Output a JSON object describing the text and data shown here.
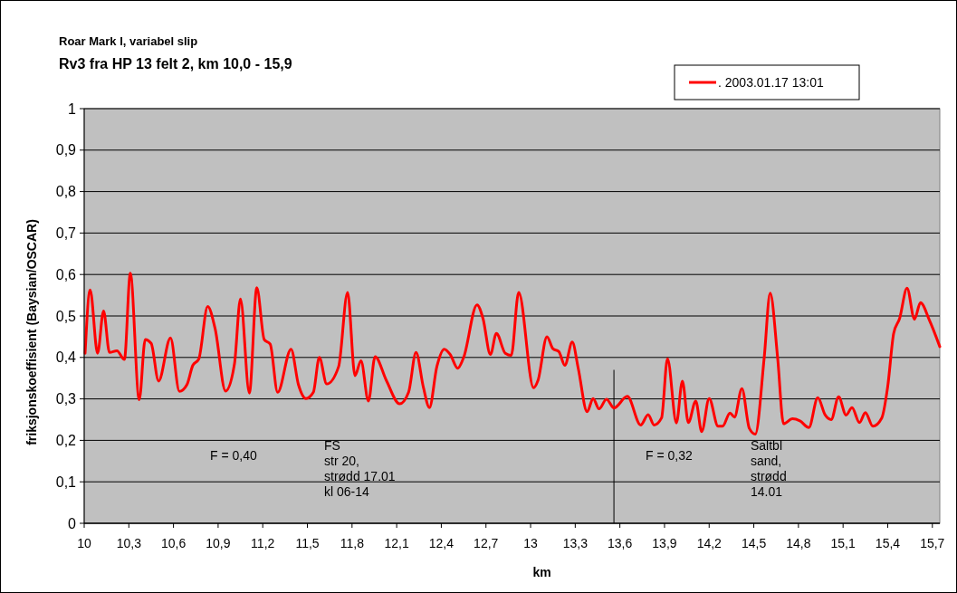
{
  "chart_data": {
    "type": "line",
    "title": "Rv3 fra HP 13 felt 2, km 10,0 - 15,9",
    "subtitle": "Roar Mark I, variabel slip",
    "xlabel": "km",
    "ylabel": "friksjonskoeffisient (Baysian/OSCAR)",
    "series": [
      {
        "name": ". 2003.01.17 13:01",
        "color": "#ff0000",
        "x": [
          10.006,
          10.04,
          10.09,
          10.13,
          10.17,
          10.22,
          10.27,
          10.31,
          10.37,
          10.41,
          10.45,
          10.5,
          10.58,
          10.64,
          10.69,
          10.73,
          10.77,
          10.83,
          10.88,
          10.95,
          11.01,
          11.05,
          11.11,
          11.16,
          11.21,
          11.25,
          11.3,
          11.39,
          11.44,
          11.49,
          11.54,
          11.58,
          11.63,
          11.71,
          11.77,
          11.82,
          11.86,
          11.91,
          11.955,
          12.03,
          12.12,
          12.18,
          12.23,
          12.28,
          12.32,
          12.37,
          12.42,
          12.46,
          12.51,
          12.55,
          12.64,
          12.68,
          12.73,
          12.77,
          12.83,
          12.87,
          12.92,
          13.02,
          13.05,
          13.11,
          13.15,
          13.19,
          13.23,
          13.28,
          13.32,
          13.38,
          13.42,
          13.46,
          13.51,
          13.56,
          13.65,
          13.74,
          13.79,
          13.83,
          13.88,
          13.92,
          13.98,
          14.02,
          14.06,
          14.11,
          14.15,
          14.2,
          14.26,
          14.29,
          14.34,
          14.37,
          14.42,
          14.47,
          14.51,
          14.57,
          14.61,
          14.66,
          14.7,
          14.76,
          14.81,
          14.87,
          14.93,
          14.98,
          15.02,
          15.07,
          15.12,
          15.16,
          15.21,
          15.25,
          15.3,
          15.36,
          15.4,
          15.44,
          15.48,
          15.53,
          15.58,
          15.62,
          15.68,
          15.75
        ],
        "values": [
          0.41,
          0.563,
          0.41,
          0.512,
          0.412,
          0.416,
          0.395,
          0.603,
          0.298,
          0.443,
          0.434,
          0.343,
          0.447,
          0.318,
          0.334,
          0.381,
          0.396,
          0.523,
          0.469,
          0.319,
          0.385,
          0.541,
          0.314,
          0.568,
          0.443,
          0.432,
          0.316,
          0.42,
          0.334,
          0.301,
          0.316,
          0.4,
          0.336,
          0.378,
          0.557,
          0.356,
          0.392,
          0.295,
          0.402,
          0.345,
          0.288,
          0.316,
          0.412,
          0.327,
          0.279,
          0.378,
          0.42,
          0.407,
          0.374,
          0.4,
          0.527,
          0.494,
          0.407,
          0.458,
          0.41,
          0.405,
          0.557,
          0.327,
          0.345,
          0.45,
          0.421,
          0.414,
          0.381,
          0.437,
          0.374,
          0.269,
          0.301,
          0.276,
          0.299,
          0.278,
          0.306,
          0.237,
          0.262,
          0.237,
          0.254,
          0.397,
          0.242,
          0.343,
          0.243,
          0.295,
          0.221,
          0.301,
          0.234,
          0.234,
          0.266,
          0.256,
          0.325,
          0.229,
          0.215,
          0.4,
          0.555,
          0.4,
          0.24,
          0.252,
          0.247,
          0.231,
          0.303,
          0.261,
          0.25,
          0.305,
          0.261,
          0.279,
          0.243,
          0.267,
          0.234,
          0.254,
          0.33,
          0.458,
          0.494,
          0.567,
          0.492,
          0.532,
          0.49,
          0.426
        ]
      }
    ],
    "xlim": [
      10,
      15.75
    ],
    "xticks": [
      10,
      {
        "value": 10.3,
        "label": "10,3"
      },
      {
        "value": 10.6,
        "label": "10,6"
      },
      {
        "value": 10.9,
        "label": "10,9"
      },
      {
        "value": 11.2,
        "label": "11,2"
      },
      {
        "value": 11.5,
        "label": "11,5"
      },
      {
        "value": 11.8,
        "label": "11,8"
      },
      {
        "value": 12.1,
        "label": "12,1"
      },
      {
        "value": 12.4,
        "label": "12,4"
      },
      {
        "value": 12.7,
        "label": "12,7"
      },
      13,
      {
        "value": 13.3,
        "label": "13,3"
      },
      {
        "value": 13.6,
        "label": "13,6"
      },
      {
        "value": 13.9,
        "label": "13,9"
      },
      {
        "value": 14.2,
        "label": "14,2"
      },
      {
        "value": 14.5,
        "label": "14,5"
      },
      {
        "value": 14.8,
        "label": "14,8"
      },
      {
        "value": 15.1,
        "label": "15,1"
      },
      {
        "value": 15.4,
        "label": "15,4"
      },
      {
        "value": 15.7,
        "label": "15,7"
      }
    ],
    "ylim": [
      0,
      1
    ],
    "yticks": [
      0,
      {
        "value": 0.1,
        "label": "0,1"
      },
      {
        "value": 0.2,
        "label": "0,2"
      },
      {
        "value": 0.3,
        "label": "0,3"
      },
      {
        "value": 0.4,
        "label": "0,4"
      },
      {
        "value": 0.5,
        "label": "0,5"
      },
      {
        "value": 0.6,
        "label": "0,6"
      },
      {
        "value": 0.7,
        "label": "0,7"
      },
      {
        "value": 0.8,
        "label": "0,8"
      },
      {
        "value": 0.9,
        "label": "0,9"
      },
      1
    ],
    "grid": "y",
    "legend": "top right",
    "marker": "none",
    "line_style": "solid",
    "ref_lines": [
      {
        "axis": "x",
        "value": 13.56,
        "color": "#000000"
      }
    ],
    "annotations": [
      "F = 0,40",
      "FS\nstr 20,\nstrødd 17.01\nkl 06-14",
      "F = 0,32",
      "Saltbl\nsand,\nstrødd\n14.01"
    ]
  }
}
